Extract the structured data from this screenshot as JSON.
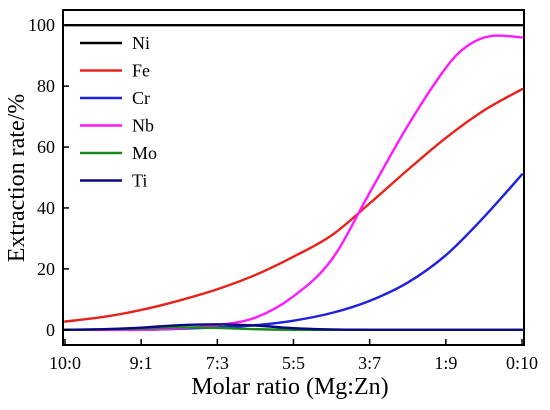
{
  "chart_data": {
    "type": "line",
    "xlabel": "Molar ratio (Mg:Zn)",
    "ylabel": "Extraction rate/%",
    "categories": [
      "10:0",
      "9:1",
      "7:3",
      "5:5",
      "3:7",
      "1:9",
      "0:10"
    ],
    "ylim": [
      -5,
      105
    ],
    "yticks": [
      0,
      20,
      40,
      60,
      80,
      100
    ],
    "legend_position": "top-left",
    "grid": false,
    "series": [
      {
        "name": "Ni",
        "color": "#000000",
        "points": [
          [
            0,
            100
          ],
          [
            1,
            100
          ],
          [
            2,
            100
          ],
          [
            3,
            100
          ],
          [
            4,
            100
          ],
          [
            5,
            100
          ],
          [
            6,
            100
          ]
        ]
      },
      {
        "name": "Fe",
        "color": "#e8221b",
        "points": [
          [
            0,
            2.7
          ],
          [
            0.5,
            4.2
          ],
          [
            1,
            6.5
          ],
          [
            1.5,
            9.6
          ],
          [
            2,
            13.3
          ],
          [
            2.5,
            18.0
          ],
          [
            3,
            24.0
          ],
          [
            3.5,
            31.0
          ],
          [
            4,
            41.5
          ],
          [
            4.5,
            52.5
          ],
          [
            5,
            63.0
          ],
          [
            5.5,
            72.0
          ],
          [
            6,
            79.0
          ]
        ]
      },
      {
        "name": "Cr",
        "color": "#1f1fe0",
        "points": [
          [
            0,
            0
          ],
          [
            1,
            0
          ],
          [
            1.5,
            0.3
          ],
          [
            2,
            0.8
          ],
          [
            2.5,
            1.5
          ],
          [
            3,
            3.0
          ],
          [
            3.5,
            5.5
          ],
          [
            4,
            9.5
          ],
          [
            4.5,
            15.5
          ],
          [
            5,
            24.5
          ],
          [
            5.5,
            37.0
          ],
          [
            6,
            51.0
          ]
        ]
      },
      {
        "name": "Nb",
        "color": "#ff19ff",
        "points": [
          [
            0,
            0
          ],
          [
            1,
            0
          ],
          [
            1.5,
            0.5
          ],
          [
            2,
            1.5
          ],
          [
            2.5,
            4.0
          ],
          [
            3,
            11.0
          ],
          [
            3.5,
            23.0
          ],
          [
            4,
            45.0
          ],
          [
            4.5,
            67.0
          ],
          [
            5,
            86.0
          ],
          [
            5.3,
            93.5
          ],
          [
            5.6,
            96.5
          ],
          [
            6,
            96.0
          ]
        ]
      },
      {
        "name": "Mo",
        "color": "#1a8a1a",
        "points": [
          [
            0,
            0
          ],
          [
            1,
            0.4
          ],
          [
            1.5,
            0.8
          ],
          [
            2,
            0.6
          ],
          [
            2.5,
            0.2
          ],
          [
            3,
            0
          ],
          [
            4,
            0
          ],
          [
            5,
            0
          ],
          [
            6,
            0
          ]
        ]
      },
      {
        "name": "Ti",
        "color": "#0a0a80",
        "points": [
          [
            0,
            0
          ],
          [
            0.5,
            0.2
          ],
          [
            1,
            0.7
          ],
          [
            1.5,
            1.5
          ],
          [
            2,
            1.8
          ],
          [
            2.5,
            1.4
          ],
          [
            3,
            0.5
          ],
          [
            3.5,
            0.1
          ],
          [
            4,
            0
          ],
          [
            5,
            0
          ],
          [
            6,
            0
          ]
        ]
      }
    ]
  }
}
